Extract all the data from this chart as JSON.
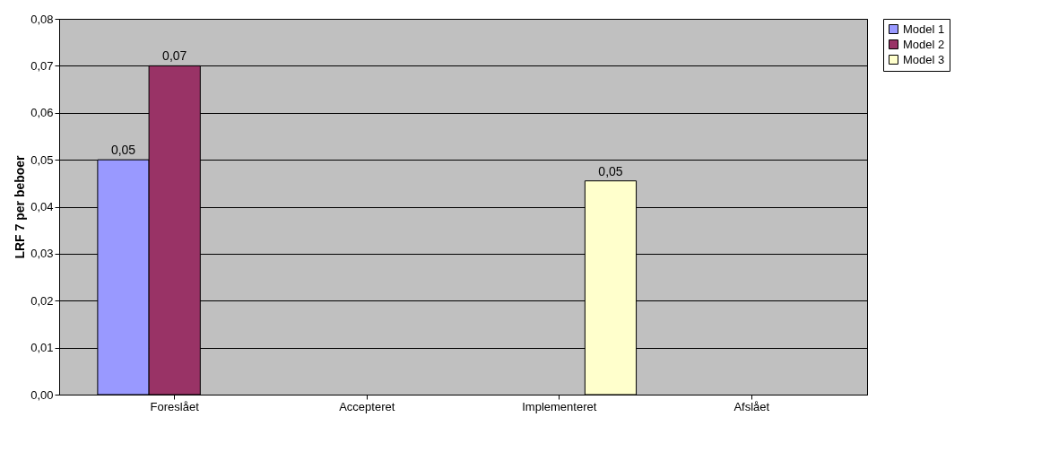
{
  "chart_data": {
    "type": "bar",
    "ylabel": "LRF 7 per beboer",
    "categories": [
      "Foreslået",
      "Accepteret",
      "Implementeret",
      "Afslået"
    ],
    "series": [
      {
        "name": "Model 1",
        "color": "#9999ff",
        "values": [
          0.05,
          null,
          null,
          null
        ],
        "value_labels": [
          "0,05",
          null,
          null,
          null
        ]
      },
      {
        "name": "Model 2",
        "color": "#993366",
        "values": [
          0.07,
          null,
          null,
          null
        ],
        "value_labels": [
          "0,07",
          null,
          null,
          null
        ]
      },
      {
        "name": "Model 3",
        "color": "#ffffcc",
        "values": [
          null,
          null,
          0.0455,
          null
        ],
        "value_labels": [
          null,
          null,
          "0,05",
          null
        ]
      }
    ],
    "ylim": [
      0,
      0.08
    ],
    "yticks": [
      {
        "value": 0,
        "label": "0,00"
      },
      {
        "value": 0.01,
        "label": "0,01"
      },
      {
        "value": 0.02,
        "label": "0,02"
      },
      {
        "value": 0.03,
        "label": "0,03"
      },
      {
        "value": 0.04,
        "label": "0,04"
      },
      {
        "value": 0.05,
        "label": "0,05"
      },
      {
        "value": 0.06,
        "label": "0,06"
      },
      {
        "value": 0.07,
        "label": "0,07"
      },
      {
        "value": 0.08,
        "label": "0,08"
      }
    ],
    "grid": "y",
    "legend": "right"
  }
}
